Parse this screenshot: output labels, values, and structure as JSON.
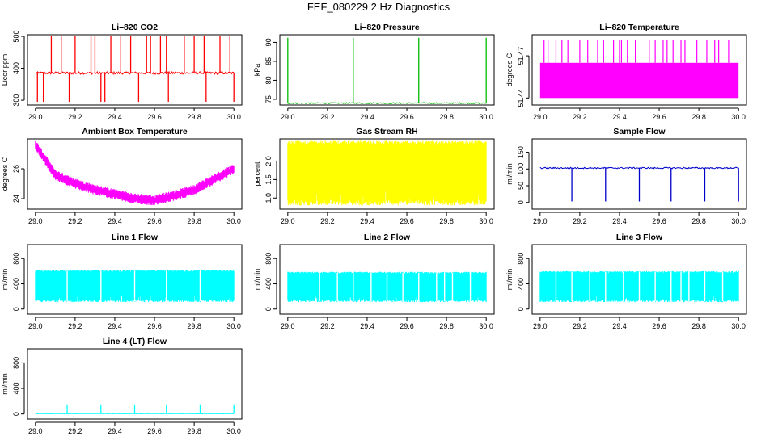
{
  "page_title": "FEF_080229  2 Hz Diagnostics",
  "chart_data": [
    {
      "type": "line",
      "title": "Li–820 CO2",
      "xlabel": "",
      "ylabel": "Licor ppm",
      "xlim": [
        29.0,
        30.0
      ],
      "ylim": [
        285,
        505
      ],
      "xticks": [
        "29.0",
        "29.2",
        "29.4",
        "29.6",
        "29.8",
        "30.0"
      ],
      "yticks": [
        300,
        400,
        500
      ],
      "color": "#ff0000",
      "pattern": "baseline_spikes",
      "baseline": 385,
      "noise": 4,
      "spikes_up": [
        29.08,
        29.13,
        29.2,
        29.28,
        29.3,
        29.38,
        29.43,
        29.48,
        29.56,
        29.58,
        29.63,
        29.66,
        29.75,
        29.8,
        29.85,
        29.93,
        29.98
      ],
      "spike_up_value": 500,
      "spikes_down": [
        29.01,
        29.04,
        29.17,
        29.33,
        29.35,
        29.52,
        29.67,
        29.86,
        30.0
      ],
      "spike_down_value": 295
    },
    {
      "type": "line",
      "title": "Li–820 Pressure",
      "xlabel": "",
      "ylabel": "kPa",
      "xlim": [
        29.0,
        30.0
      ],
      "ylim": [
        73.5,
        92
      ],
      "xticks": [
        "29.0",
        "29.2",
        "29.4",
        "29.6",
        "29.8",
        "30.0"
      ],
      "yticks": [
        75,
        80,
        85,
        90
      ],
      "color": "#00bb00",
      "pattern": "baseline_spikes",
      "baseline": 74,
      "noise": 0.15,
      "spikes_up": [
        29.0,
        29.33,
        29.66,
        30.0
      ],
      "spike_up_value": 91.2,
      "spikes_down": [],
      "spike_down_value": 74
    },
    {
      "type": "line",
      "title": "Li–820 Temperature",
      "xlabel": "",
      "ylabel": "degrees C",
      "xlim": [
        29.0,
        30.0
      ],
      "ylim": [
        51.435,
        51.485
      ],
      "xticks": [
        "29.0",
        "29.2",
        "29.4",
        "29.6",
        "29.8",
        "30.0"
      ],
      "yticks": [
        51.44,
        51.47
      ],
      "color": "#ff00ff",
      "pattern": "band_spikes",
      "band": [
        51.44,
        51.465
      ],
      "spikes_up": [
        29.02,
        29.04,
        29.08,
        29.11,
        29.14,
        29.2,
        29.24,
        29.29,
        29.32,
        29.37,
        29.4,
        29.41,
        29.44,
        29.48,
        29.55,
        29.58,
        29.62,
        29.64,
        29.67,
        29.71,
        29.73,
        29.79,
        29.84,
        29.88,
        29.9,
        29.95
      ],
      "spike_up_value": 51.481
    },
    {
      "type": "line",
      "title": "Ambient Box Temperature",
      "xlabel": "",
      "ylabel": "degrees C",
      "xlim": [
        29.0,
        30.0
      ],
      "ylim": [
        23.3,
        28.0
      ],
      "xticks": [
        "29.0",
        "29.2",
        "29.4",
        "29.6",
        "29.8",
        "30.0"
      ],
      "yticks": [
        24,
        26
      ],
      "color": "#ff00ff",
      "pattern": "curve_noise",
      "curve": [
        [
          29.0,
          27.6
        ],
        [
          29.1,
          25.6
        ],
        [
          29.2,
          25.0
        ],
        [
          29.3,
          24.6
        ],
        [
          29.4,
          24.3
        ],
        [
          29.5,
          24.0
        ],
        [
          29.6,
          23.9
        ],
        [
          29.7,
          24.2
        ],
        [
          29.8,
          24.6
        ],
        [
          29.9,
          25.3
        ],
        [
          30.0,
          26.0
        ]
      ],
      "noise": 0.35
    },
    {
      "type": "line",
      "title": "Gas Stream RH",
      "xlabel": "",
      "ylabel": "percent",
      "xlim": [
        29.0,
        30.0
      ],
      "ylim": [
        0.7,
        2.6
      ],
      "xticks": [
        "29.0",
        "29.2",
        "29.4",
        "29.6",
        "29.8",
        "30.0"
      ],
      "yticks": [
        1.0,
        1.5,
        2.0
      ],
      "color": "#ffff00",
      "pattern": "band_fill",
      "band": [
        0.8,
        2.55
      ]
    },
    {
      "type": "line",
      "title": "Sample Flow",
      "xlabel": "",
      "ylabel": "ml/min",
      "xlim": [
        29.0,
        30.0
      ],
      "ylim": [
        -20,
        190
      ],
      "xticks": [
        "29.0",
        "29.2",
        "29.4",
        "29.6",
        "29.8",
        "30.0"
      ],
      "yticks": [
        0,
        50,
        100,
        150
      ],
      "color": "#0000cc",
      "pattern": "baseline_spikes",
      "baseline": 103,
      "noise": 2,
      "spikes_up": [],
      "spike_up_value": 103,
      "spikes_down": [
        29.16,
        29.33,
        29.5,
        29.66,
        29.83,
        30.0
      ],
      "spike_down_value": 3
    },
    {
      "type": "line",
      "title": "Line 1 Flow",
      "xlabel": "",
      "ylabel": "ml/min",
      "xlim": [
        29.0,
        30.0
      ],
      "ylim": [
        -80,
        1020
      ],
      "xticks": [
        "29.0",
        "29.2",
        "29.4",
        "29.6",
        "29.8",
        "30.0"
      ],
      "yticks": [
        0,
        400,
        800
      ],
      "color": "#00ffff",
      "pattern": "band_fill",
      "band": [
        110,
        620
      ],
      "gaps": [
        29.16,
        29.33,
        29.5,
        29.66,
        29.83
      ]
    },
    {
      "type": "line",
      "title": "Line 2 Flow",
      "xlabel": "",
      "ylabel": "ml/min",
      "xlim": [
        29.0,
        30.0
      ],
      "ylim": [
        -80,
        1020
      ],
      "xticks": [
        "29.0",
        "29.2",
        "29.4",
        "29.6",
        "29.8",
        "30.0"
      ],
      "yticks": [
        0,
        400,
        800
      ],
      "color": "#00ffff",
      "pattern": "band_fill",
      "band": [
        110,
        590
      ],
      "gaps": [
        29.16,
        29.25,
        29.33,
        29.42,
        29.5,
        29.58,
        29.66,
        29.75,
        29.79,
        29.83,
        29.92
      ]
    },
    {
      "type": "line",
      "title": "Line 3 Flow",
      "xlabel": "",
      "ylabel": "ml/min",
      "xlim": [
        29.0,
        30.0
      ],
      "ylim": [
        -80,
        1020
      ],
      "xticks": [
        "29.0",
        "29.2",
        "29.4",
        "29.6",
        "29.8",
        "30.0"
      ],
      "yticks": [
        0,
        400,
        800
      ],
      "color": "#00ffff",
      "pattern": "band_fill",
      "band": [
        110,
        600
      ],
      "gaps": [
        29.08,
        29.16,
        29.25,
        29.33,
        29.42,
        29.5,
        29.58,
        29.66,
        29.71,
        29.75,
        29.83,
        29.92
      ]
    },
    {
      "type": "line",
      "title": "Line 4 (LT) Flow",
      "xlabel": "",
      "ylabel": "ml/min",
      "xlim": [
        29.0,
        30.0
      ],
      "ylim": [
        -80,
        1020
      ],
      "xticks": [
        "29.0",
        "29.2",
        "29.4",
        "29.6",
        "29.8",
        "30.0"
      ],
      "yticks": [
        0,
        400,
        800
      ],
      "color": "#00ffff",
      "pattern": "baseline_spikes",
      "baseline": 5,
      "noise": 3,
      "spikes_up": [
        29.16,
        29.33,
        29.5,
        29.66,
        29.83,
        30.0
      ],
      "spike_up_value": 150,
      "spikes_down": [],
      "spike_down_value": 5
    }
  ]
}
